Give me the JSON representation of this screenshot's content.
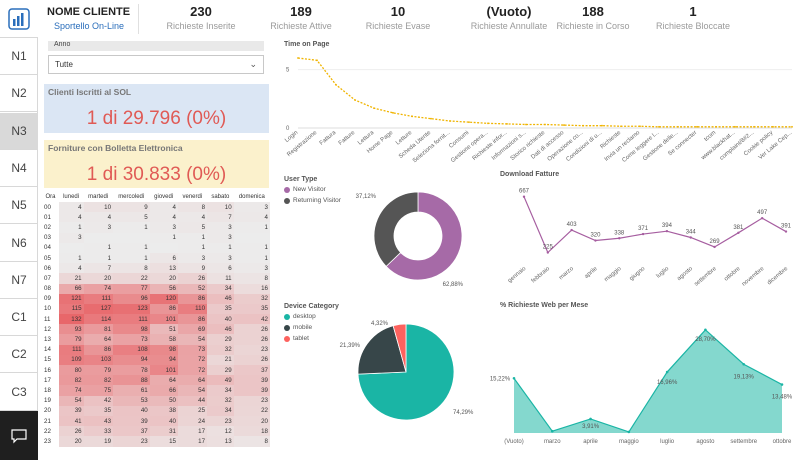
{
  "nav": {
    "items": [
      "N1",
      "N2",
      "N3",
      "N4",
      "N5",
      "N6",
      "N7",
      "C1",
      "C2",
      "C3"
    ],
    "active": 2
  },
  "header": {
    "client": "NOME CLIENTE",
    "subtitle": "Sportello On-Line",
    "kpis": [
      {
        "value": "230",
        "label": "Richieste Inserite"
      },
      {
        "value": "189",
        "label": "Richieste Attive"
      },
      {
        "value": "10",
        "label": "Richieste Evase"
      },
      {
        "value": "(Vuoto)",
        "label": "Richieste Annullate"
      },
      {
        "value": "188",
        "label": "Richieste in Corso"
      },
      {
        "value": "1",
        "label": "Richieste Bloccate"
      }
    ]
  },
  "filter": {
    "label": "Anno",
    "value": "Tutte"
  },
  "cards": {
    "iscritti_title": "Clienti Iscritti al SOL",
    "iscritti_value": "1 di 29.796 (0%)",
    "forniture_title": "Forniture con Bolletta Elettronica",
    "forniture_value": "1 di 30.833 (0%)"
  },
  "heatmap": {
    "headers": [
      "Ora",
      "lunedì",
      "martedì",
      "mercoledì",
      "giovedì",
      "venerdì",
      "sabato",
      "domenica"
    ],
    "rows": [
      [
        "00",
        "4",
        "10",
        "9",
        "4",
        "8",
        "10",
        "3"
      ],
      [
        "01",
        "4",
        "4",
        "5",
        "4",
        "4",
        "7",
        "4"
      ],
      [
        "02",
        "1",
        "3",
        "1",
        "3",
        "5",
        "3",
        "1"
      ],
      [
        "03",
        "3",
        "",
        "",
        "1",
        "1",
        "3",
        ""
      ],
      [
        "04",
        "",
        "1",
        "1",
        "",
        "1",
        "1",
        "1"
      ],
      [
        "05",
        "1",
        "1",
        "1",
        "6",
        "3",
        "3",
        "1"
      ],
      [
        "06",
        "4",
        "7",
        "8",
        "13",
        "9",
        "6",
        "3"
      ],
      [
        "07",
        "21",
        "20",
        "22",
        "20",
        "26",
        "11",
        "8"
      ],
      [
        "08",
        "66",
        "74",
        "77",
        "56",
        "52",
        "34",
        "16"
      ],
      [
        "09",
        "121",
        "111",
        "96",
        "120",
        "86",
        "46",
        "32"
      ],
      [
        "10",
        "115",
        "127",
        "123",
        "86",
        "110",
        "35",
        "35"
      ],
      [
        "11",
        "132",
        "114",
        "111",
        "101",
        "86",
        "40",
        "42"
      ],
      [
        "12",
        "93",
        "81",
        "98",
        "51",
        "69",
        "46",
        "26"
      ],
      [
        "13",
        "79",
        "64",
        "73",
        "58",
        "54",
        "29",
        "26"
      ],
      [
        "14",
        "111",
        "86",
        "108",
        "98",
        "73",
        "32",
        "23"
      ],
      [
        "15",
        "109",
        "103",
        "94",
        "94",
        "72",
        "21",
        "26"
      ],
      [
        "16",
        "80",
        "79",
        "78",
        "101",
        "72",
        "29",
        "37"
      ],
      [
        "17",
        "82",
        "82",
        "88",
        "64",
        "64",
        "49",
        "39"
      ],
      [
        "18",
        "74",
        "75",
        "61",
        "66",
        "54",
        "34",
        "39"
      ],
      [
        "19",
        "54",
        "42",
        "53",
        "50",
        "44",
        "32",
        "23"
      ],
      [
        "20",
        "39",
        "35",
        "40",
        "38",
        "25",
        "34",
        "22"
      ],
      [
        "21",
        "41",
        "43",
        "39",
        "40",
        "24",
        "23",
        "20"
      ],
      [
        "22",
        "26",
        "33",
        "37",
        "31",
        "17",
        "12",
        "18"
      ],
      [
        "23",
        "20",
        "19",
        "23",
        "15",
        "17",
        "13",
        "8"
      ]
    ],
    "max_value": 132,
    "color_high": "#e8676a",
    "color_low": "#ececec"
  },
  "chart_data": [
    {
      "type": "line",
      "title": "Time on Page",
      "categories": [
        "Login",
        "Registrazione",
        "Fattura",
        "Fatture",
        "Lettura",
        "Home Page",
        "Letture",
        "Scheda Utente",
        "Seleziona fornit...",
        "Consumi",
        "Gestione opera...",
        "Richieste infor...",
        "Informazioni s...",
        "Storico richieste",
        "Dati di accesso",
        "Operazione co...",
        "Condizioni di u...",
        "Richieste",
        "Invia un reclamo",
        "Come leggere l...",
        "Gestione delle...",
        "Se connecter",
        "tcom",
        "www.blackhat...",
        "complaint/8#2...",
        "Cookie policy",
        "Ver Lake Cep..."
      ],
      "values": [
        6,
        5.8,
        3.7,
        2.4,
        1.7,
        1.3,
        1.0,
        0.8,
        0.6,
        0.5,
        0.4,
        0.35,
        0.3,
        0.3,
        0.25,
        0.2,
        0.2,
        0.15,
        0.15,
        0.1,
        0.1,
        0.1,
        0.1,
        0.1,
        0.1,
        0.1,
        0.1
      ],
      "ylim": [
        0,
        6
      ],
      "yticks": [
        "5",
        "0"
      ],
      "color": "#f0b400"
    },
    {
      "type": "pie",
      "title": "User Type",
      "series": [
        {
          "name": "New Visitor",
          "value": 62.88,
          "label": "62,88%",
          "color": "#a66aa7"
        },
        {
          "name": "Returning Visitor",
          "value": 37.12,
          "label": "37,12%",
          "color": "#555555"
        }
      ],
      "donut": true,
      "legend": "top-left"
    },
    {
      "type": "line",
      "title": "Download Fatture",
      "categories": [
        "gennaio",
        "febbraio",
        "marzo",
        "aprile",
        "maggio",
        "giugno",
        "luglio",
        "agosto",
        "settembre",
        "ottobre",
        "novembre",
        "dicembre"
      ],
      "values": [
        667,
        225,
        403,
        320,
        338,
        371,
        394,
        344,
        269,
        381,
        497,
        391
      ],
      "ylim": [
        150,
        720
      ],
      "color": "#a65ea0"
    },
    {
      "type": "pie",
      "title": "Device Category",
      "series": [
        {
          "name": "desktop",
          "value": 74.29,
          "label": "74,29%",
          "color": "#1ab5a5"
        },
        {
          "name": "mobile",
          "value": 21.39,
          "label": "21,39%",
          "color": "#374649"
        },
        {
          "name": "tablet",
          "value": 4.32,
          "label": "4,32%",
          "color": "#fd625e"
        }
      ],
      "legend": "top-left"
    },
    {
      "type": "area",
      "title": "% Richieste Web per Mese",
      "categories": [
        "(Vuoto)",
        "marzo",
        "aprile",
        "maggio",
        "luglio",
        "agosto",
        "settembre",
        "ottobre"
      ],
      "values": [
        15.22,
        0.5,
        3.91,
        0.3,
        16.96,
        28.7,
        19.13,
        13.48
      ],
      "labels": [
        "15,22%",
        "",
        "3,91%",
        "",
        "16,96%",
        "28,70%",
        "19,13%",
        "13,48%"
      ],
      "ylim": [
        0,
        32
      ],
      "color": "#6fd1c6",
      "stroke": "#1ab5a5"
    }
  ]
}
